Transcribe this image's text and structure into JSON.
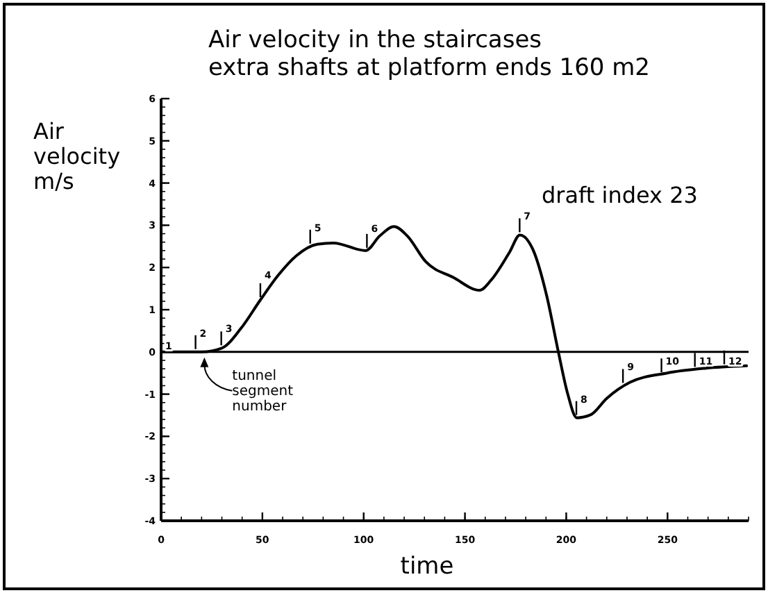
{
  "chart_data": {
    "type": "line",
    "title": "Air velocity in the staircases",
    "subtitle": "extra shafts at platform ends 160 m2",
    "xlabel": "time",
    "ylabel": "Air velocity m/s",
    "x": [
      0,
      20,
      30,
      39.3,
      49,
      57.7,
      66.8,
      77.1,
      85,
      101,
      108,
      115,
      121.5,
      130.6,
      144.4,
      157.2,
      162.9,
      172,
      177.1,
      183.6,
      190.4,
      196.1,
      200.7,
      205.2,
      212,
      220,
      231.5,
      249.8,
      268.1,
      289
    ],
    "series": [
      {
        "color": "#000000",
        "values": [
          0,
          0,
          0.09,
          0.55,
          1.23,
          1.81,
          2.28,
          2.55,
          2.58,
          2.4,
          2.75,
          2.97,
          2.75,
          2.14,
          1.76,
          1.46,
          1.7,
          2.36,
          2.77,
          2.42,
          1.32,
          0,
          -0.99,
          -1.56,
          -1.49,
          -1.1,
          -0.72,
          -0.5,
          -0.39,
          -0.33
        ]
      }
    ],
    "xlim": [
      0,
      290
    ],
    "xticks": [
      0,
      50,
      100,
      150,
      200,
      250
    ],
    "ylim": [
      -4,
      6
    ],
    "yticks": [
      -4,
      -3,
      -2,
      -1,
      0,
      1,
      2,
      3,
      4,
      5,
      6
    ],
    "ref_lines": [
      {
        "axis": "y",
        "value": 0,
        "color": "#000000"
      }
    ],
    "annotations": [
      "draft index 23",
      {
        "text": "tunnel segment number",
        "x": 20,
        "y": 0
      },
      {
        "text": "1",
        "x": 0,
        "y": 0
      },
      {
        "text": "2",
        "x": 17,
        "y": 0
      },
      {
        "text": "3",
        "x": 29.7,
        "y": 0.09
      },
      {
        "text": "4",
        "x": 49,
        "y": 1.23
      },
      {
        "text": "5",
        "x": 73.6,
        "y": 2.5
      },
      {
        "text": "6",
        "x": 101.6,
        "y": 2.4
      },
      {
        "text": "7",
        "x": 177,
        "y": 2.77
      },
      {
        "text": "8",
        "x": 205,
        "y": -1.56
      },
      {
        "text": "9",
        "x": 228,
        "y": -0.8
      },
      {
        "text": "10",
        "x": 247,
        "y": -0.55
      },
      {
        "text": "11",
        "x": 263.5,
        "y": -0.42
      },
      {
        "text": "12",
        "x": 278,
        "y": -0.36
      }
    ],
    "grid": false,
    "marker": "none",
    "line_style": "solid"
  }
}
